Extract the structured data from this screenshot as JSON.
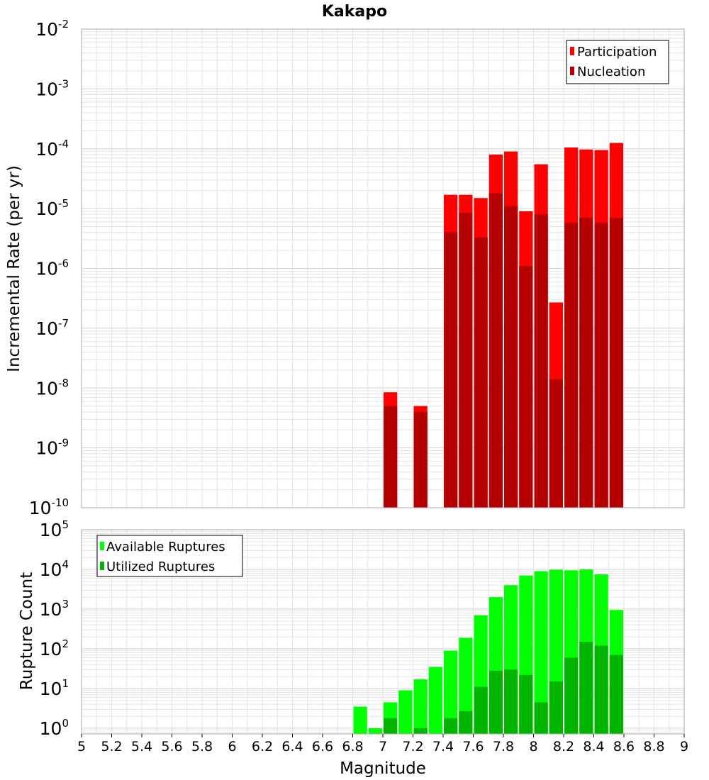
{
  "title": "Kakapo",
  "colors": {
    "participation": "#ff0000",
    "nucleation": "#b40000",
    "available": "#00ff00",
    "utilized": "#00b400",
    "grid": "#e3e3e3",
    "frame": "#a8a8a8"
  },
  "chart_data": [
    {
      "type": "bar",
      "title": "Kakapo",
      "xlabel": "Magnitude",
      "ylabel": "Incremental Rate (per yr)",
      "xlim": [
        5,
        9
      ],
      "ylim": [
        1e-10,
        0.01
      ],
      "yscale": "log",
      "grid": true,
      "legend": "top-right",
      "x": [
        7.05,
        7.25,
        7.45,
        7.55,
        7.65,
        7.75,
        7.85,
        7.95,
        8.05,
        8.15,
        8.25,
        8.35,
        8.45,
        8.55
      ],
      "series": [
        {
          "name": "Participation",
          "values": [
            8.5e-09,
            5e-09,
            1.7e-05,
            1.7e-05,
            1.5e-05,
            8e-05,
            9e-05,
            9e-06,
            5.5e-05,
            2.7e-07,
            0.000105,
            9.7e-05,
            9.5e-05,
            0.000125
          ]
        },
        {
          "name": "Nucleation",
          "values": [
            5e-09,
            4e-09,
            4e-06,
            8.5e-06,
            3.3e-06,
            1.8e-05,
            1.1e-05,
            1.1e-06,
            8e-06,
            1.4e-08,
            5.8e-06,
            7e-06,
            5.8e-06,
            7e-06
          ]
        }
      ]
    },
    {
      "type": "bar",
      "xlabel": "Magnitude",
      "ylabel": "Rupture Count",
      "xlim": [
        5,
        9
      ],
      "ylim": [
        0.72,
        100000.0
      ],
      "yscale": "log",
      "grid": true,
      "legend": "top-left",
      "x": [
        6.85,
        6.95,
        7.05,
        7.15,
        7.25,
        7.35,
        7.45,
        7.55,
        7.65,
        7.75,
        7.85,
        7.95,
        8.05,
        8.15,
        8.25,
        8.35,
        8.45,
        8.55
      ],
      "series": [
        {
          "name": "Available Ruptures",
          "values": [
            3.5,
            1,
            4.5,
            9,
            17,
            35,
            90,
            190,
            700,
            2000,
            4000,
            7000,
            9000,
            9800,
            9500,
            10000,
            7500,
            950
          ]
        },
        {
          "name": "Utilized Ruptures",
          "values": [
            0,
            0,
            1.8,
            0,
            1,
            0,
            1.8,
            2.7,
            11,
            28,
            30,
            22,
            4.5,
            15,
            60,
            150,
            120,
            70
          ]
        }
      ]
    }
  ],
  "x_ticks": [
    "5",
    "5.2",
    "5.4",
    "5.6",
    "5.8",
    "6",
    "6.2",
    "6.4",
    "6.6",
    "6.8",
    "7",
    "7.2",
    "7.4",
    "7.6",
    "7.8",
    "8",
    "8.2",
    "8.4",
    "8.6",
    "8.8",
    "9"
  ],
  "top_y_ticks": [
    {
      "base": "10",
      "exp": "-2"
    },
    {
      "base": "10",
      "exp": "-3"
    },
    {
      "base": "10",
      "exp": "-4"
    },
    {
      "base": "10",
      "exp": "-5"
    },
    {
      "base": "10",
      "exp": "-6"
    },
    {
      "base": "10",
      "exp": "-7"
    },
    {
      "base": "10",
      "exp": "-8"
    },
    {
      "base": "10",
      "exp": "-9"
    },
    {
      "base": "10",
      "exp": "-10"
    }
  ],
  "bottom_y_ticks": [
    {
      "base": "10",
      "exp": "5"
    },
    {
      "base": "10",
      "exp": "4"
    },
    {
      "base": "10",
      "exp": "3"
    },
    {
      "base": "10",
      "exp": "2"
    },
    {
      "base": "10",
      "exp": "1"
    },
    {
      "base": "10",
      "exp": "0"
    }
  ]
}
